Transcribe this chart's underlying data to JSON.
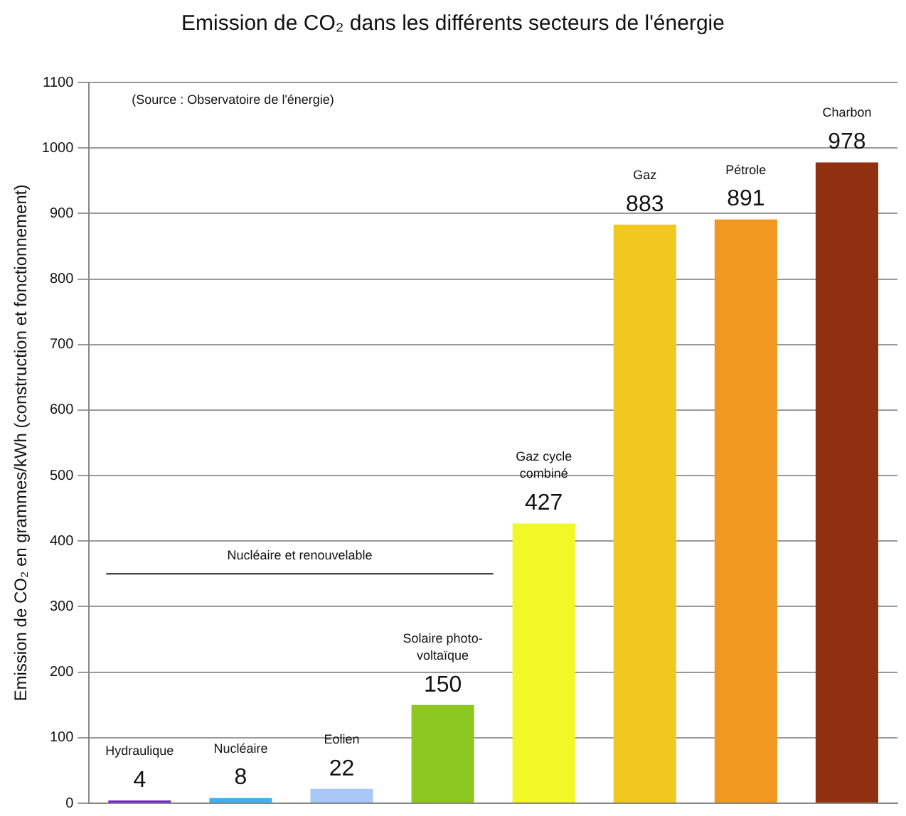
{
  "chart_data": {
    "type": "bar",
    "title": "Emission de CO₂ dans les différents secteurs de l'énergie",
    "ylabel": "Emission de CO₂ en grammes/kWh (construction et fonctionnement)",
    "categories": [
      "Hydraulique",
      "Nucléaire",
      "Eolien",
      "Solaire photo-voltaïque",
      "Gaz cycle combiné",
      "Gaz",
      "Pétrole",
      "Charbon"
    ],
    "values": [
      4,
      8,
      22,
      150,
      427,
      883,
      891,
      978
    ],
    "colors": [
      "#6a1fd0",
      "#3fb0f0",
      "#a8c8f8",
      "#8cc820",
      "#f0f828",
      "#f0c820",
      "#f09820",
      "#903010"
    ],
    "ylim": [
      0,
      1100
    ],
    "yticks": [
      0,
      100,
      200,
      300,
      400,
      500,
      600,
      700,
      800,
      900,
      1000,
      1100
    ],
    "grid": "y",
    "legend": false,
    "tick_labels": "y",
    "data_labels": true,
    "ref_lines": [
      {
        "axis": "y",
        "value": 350,
        "label": "Nucléaire et renouvelable",
        "color": "#222222"
      }
    ],
    "annotations": [
      "(Source : Observatoire de l'énergie)"
    ]
  }
}
